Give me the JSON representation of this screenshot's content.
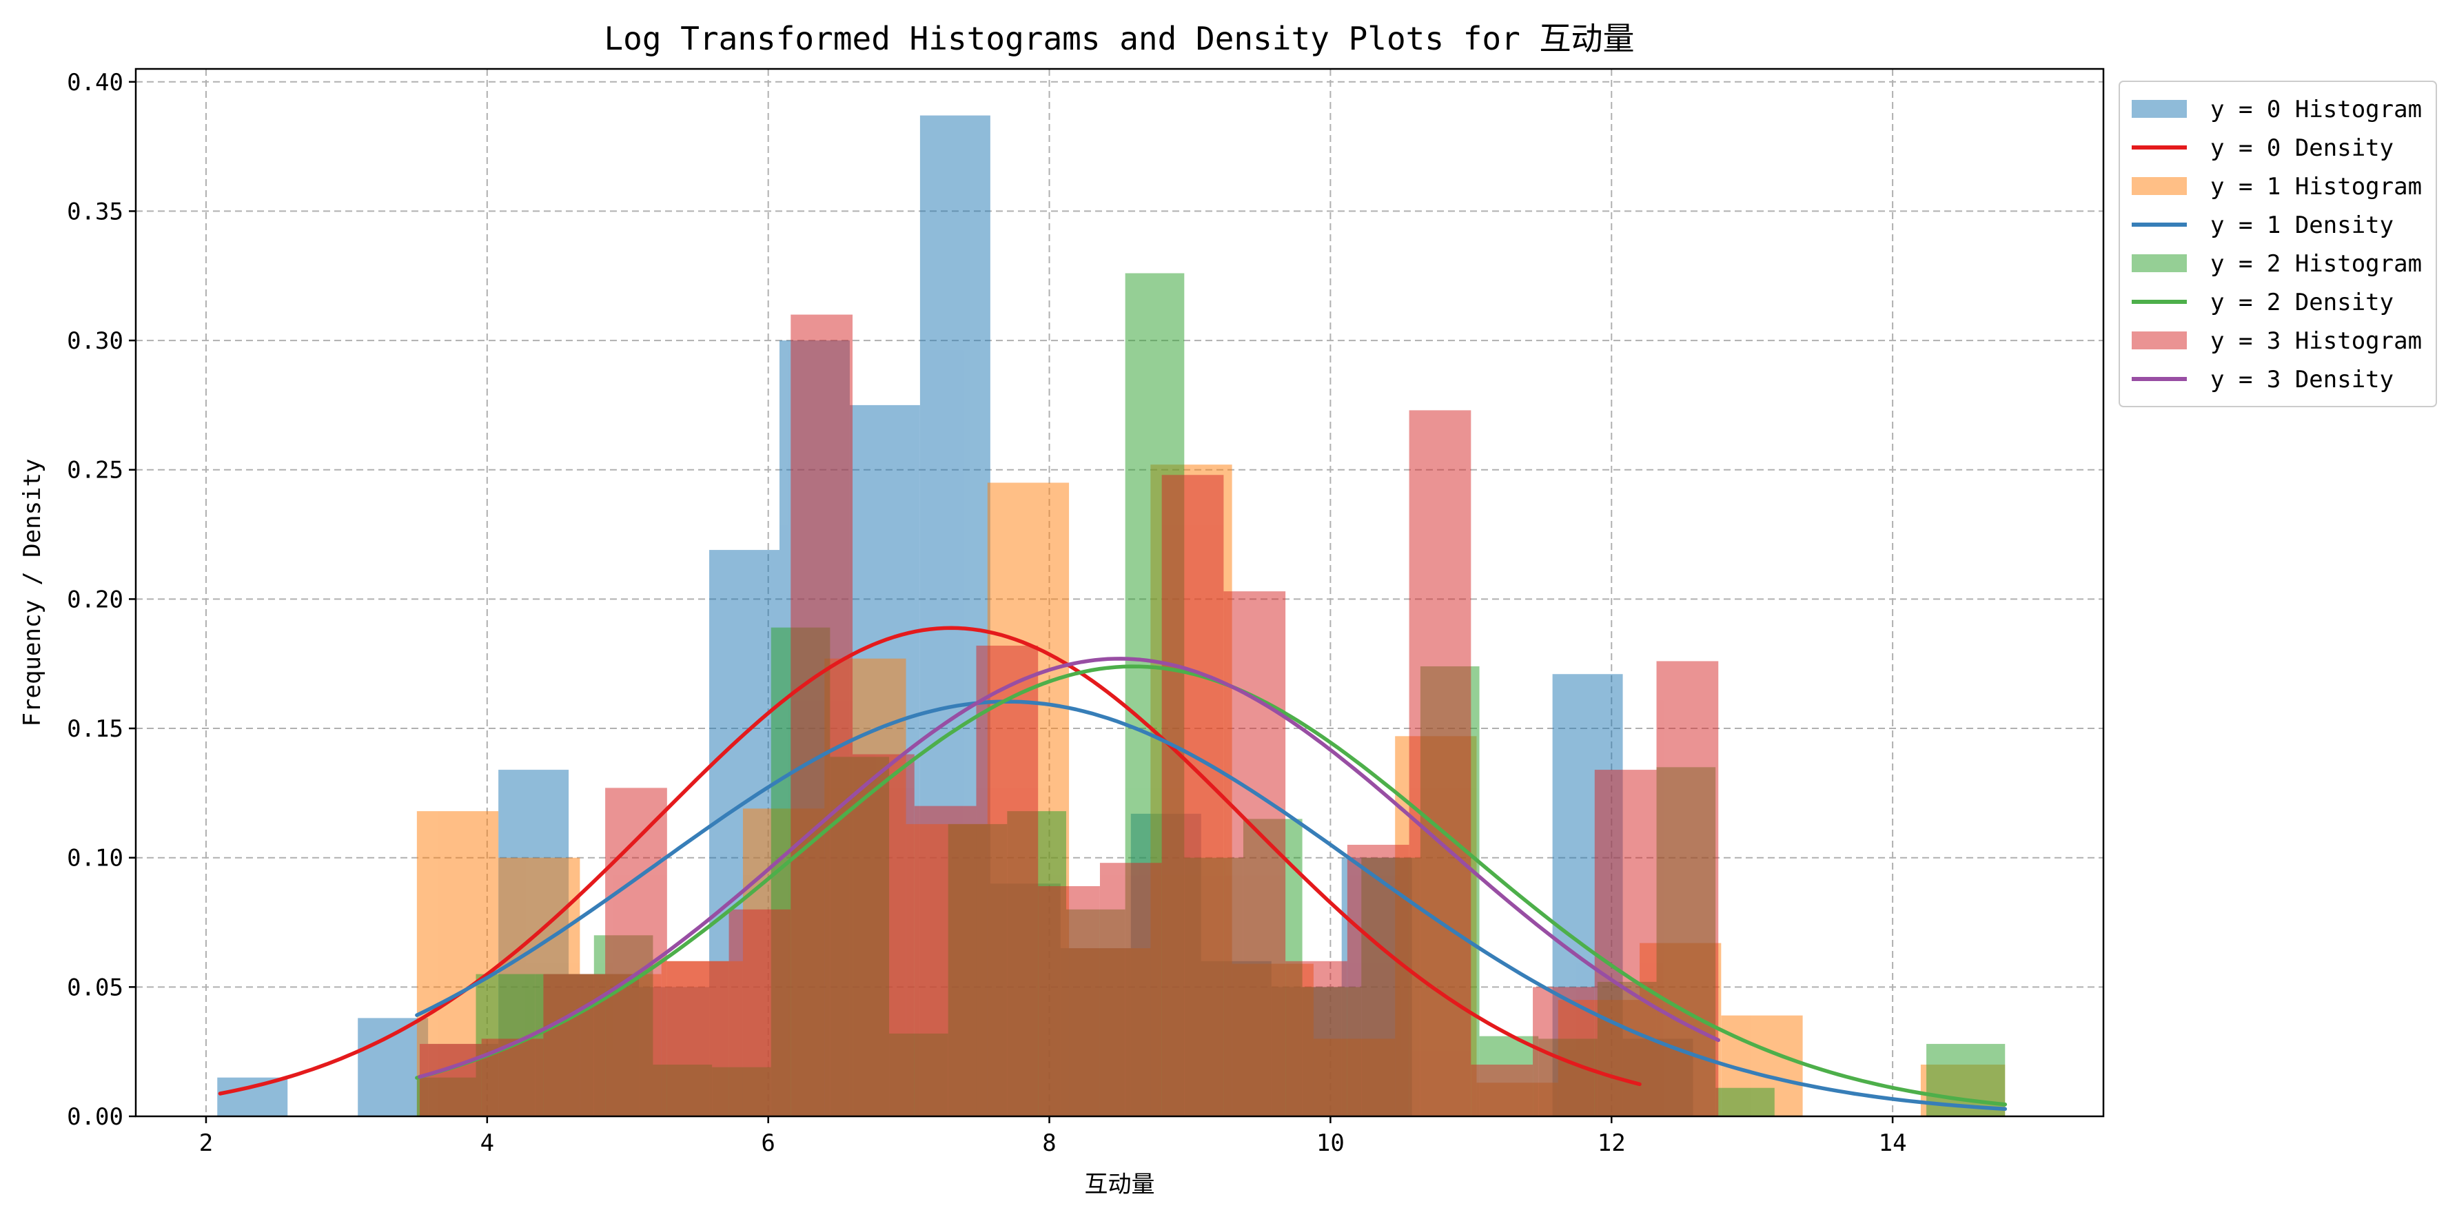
{
  "chart_data": {
    "type": "histogram+density",
    "title": "Log Transformed Histograms and Density Plots for 互动量",
    "xlabel": "互动量",
    "ylabel": "Frequency / Density",
    "xlim": [
      1.5,
      15.5
    ],
    "ylim": [
      0,
      0.405
    ],
    "x_ticks": [
      2,
      4,
      6,
      8,
      10,
      12,
      14
    ],
    "x_tick_labels": [
      "2",
      "4",
      "6",
      "8",
      "10",
      "12",
      "14"
    ],
    "y_ticks": [
      0,
      0.05,
      0.1,
      0.15,
      0.2,
      0.25,
      0.3,
      0.35,
      0.4
    ],
    "y_tick_labels": [
      "0.00",
      "0.05",
      "0.10",
      "0.15",
      "0.20",
      "0.25",
      "0.30",
      "0.35",
      "0.40"
    ],
    "grid": true,
    "legend_position": "outside-right-top",
    "legend": [
      "y = 0 Histogram",
      "y = 0 Density",
      "y = 1 Histogram",
      "y = 1 Density",
      "y = 2 Histogram",
      "y = 2 Density",
      "y = 3 Histogram",
      "y = 3 Density"
    ],
    "histograms": [
      {
        "name": "y = 0 Histogram",
        "color": "#1f77b4",
        "alpha": 0.5,
        "bins": [
          {
            "x0": 2.08,
            "x1": 2.58,
            "h": 0.015
          },
          {
            "x0": 3.08,
            "x1": 3.58,
            "h": 0.038
          },
          {
            "x0": 3.58,
            "x1": 4.08,
            "h": 0.028
          },
          {
            "x0": 4.08,
            "x1": 4.58,
            "h": 0.134
          },
          {
            "x0": 4.58,
            "x1": 5.08,
            "h": 0.055
          },
          {
            "x0": 5.08,
            "x1": 5.58,
            "h": 0.05
          },
          {
            "x0": 5.58,
            "x1": 6.08,
            "h": 0.219
          },
          {
            "x0": 6.08,
            "x1": 6.58,
            "h": 0.3
          },
          {
            "x0": 6.58,
            "x1": 7.08,
            "h": 0.275
          },
          {
            "x0": 7.08,
            "x1": 7.58,
            "h": 0.387
          },
          {
            "x0": 7.58,
            "x1": 8.08,
            "h": 0.09
          },
          {
            "x0": 8.08,
            "x1": 8.58,
            "h": 0.065
          },
          {
            "x0": 8.58,
            "x1": 9.08,
            "h": 0.117
          },
          {
            "x0": 9.08,
            "x1": 9.58,
            "h": 0.06
          },
          {
            "x0": 9.58,
            "x1": 10.08,
            "h": 0.05
          },
          {
            "x0": 10.08,
            "x1": 10.58,
            "h": 0.1
          },
          {
            "x0": 11.58,
            "x1": 12.08,
            "h": 0.171
          },
          {
            "x0": 12.08,
            "x1": 12.58,
            "h": 0.03
          }
        ]
      },
      {
        "name": "y = 1 Histogram",
        "color": "#ff7f0e",
        "alpha": 0.5,
        "bins": [
          {
            "x0": 3.5,
            "x1": 4.08,
            "h": 0.118
          },
          {
            "x0": 4.08,
            "x1": 4.66,
            "h": 0.1
          },
          {
            "x0": 4.66,
            "x1": 5.24,
            "h": 0.055
          },
          {
            "x0": 5.24,
            "x1": 5.82,
            "h": 0.06
          },
          {
            "x0": 5.82,
            "x1": 6.4,
            "h": 0.119
          },
          {
            "x0": 6.4,
            "x1": 6.98,
            "h": 0.177
          },
          {
            "x0": 6.98,
            "x1": 7.56,
            "h": 0.113
          },
          {
            "x0": 7.56,
            "x1": 8.14,
            "h": 0.245
          },
          {
            "x0": 8.14,
            "x1": 8.72,
            "h": 0.065
          },
          {
            "x0": 8.72,
            "x1": 9.3,
            "h": 0.252
          },
          {
            "x0": 9.3,
            "x1": 9.88,
            "h": 0.059
          },
          {
            "x0": 9.88,
            "x1": 10.46,
            "h": 0.03
          },
          {
            "x0": 10.46,
            "x1": 11.04,
            "h": 0.147
          },
          {
            "x0": 11.04,
            "x1": 11.62,
            "h": 0.013
          },
          {
            "x0": 11.62,
            "x1": 12.2,
            "h": 0.045
          },
          {
            "x0": 12.2,
            "x1": 12.78,
            "h": 0.067
          },
          {
            "x0": 12.78,
            "x1": 13.36,
            "h": 0.039
          },
          {
            "x0": 14.2,
            "x1": 14.8,
            "h": 0.02
          }
        ]
      },
      {
        "name": "y = 2 Histogram",
        "color": "#2ca02c",
        "alpha": 0.5,
        "bins": [
          {
            "x0": 3.5,
            "x1": 3.92,
            "h": 0.015
          },
          {
            "x0": 3.92,
            "x1": 4.34,
            "h": 0.055
          },
          {
            "x0": 4.34,
            "x1": 4.76,
            "h": 0.055
          },
          {
            "x0": 4.76,
            "x1": 5.18,
            "h": 0.07
          },
          {
            "x0": 5.18,
            "x1": 5.6,
            "h": 0.02
          },
          {
            "x0": 5.6,
            "x1": 6.02,
            "h": 0.019
          },
          {
            "x0": 6.02,
            "x1": 6.44,
            "h": 0.189
          },
          {
            "x0": 6.44,
            "x1": 6.86,
            "h": 0.139
          },
          {
            "x0": 6.86,
            "x1": 7.28,
            "h": 0.032
          },
          {
            "x0": 7.28,
            "x1": 7.7,
            "h": 0.113
          },
          {
            "x0": 7.7,
            "x1": 8.12,
            "h": 0.118
          },
          {
            "x0": 8.12,
            "x1": 8.54,
            "h": 0.08
          },
          {
            "x0": 8.54,
            "x1": 8.96,
            "h": 0.326
          },
          {
            "x0": 8.96,
            "x1": 9.38,
            "h": 0.1
          },
          {
            "x0": 9.38,
            "x1": 9.8,
            "h": 0.115
          },
          {
            "x0": 9.8,
            "x1": 10.22,
            "h": 0.05
          },
          {
            "x0": 10.22,
            "x1": 10.64,
            "h": 0.1
          },
          {
            "x0": 10.64,
            "x1": 11.06,
            "h": 0.174
          },
          {
            "x0": 11.06,
            "x1": 11.48,
            "h": 0.031
          },
          {
            "x0": 11.48,
            "x1": 11.9,
            "h": 0.03
          },
          {
            "x0": 11.9,
            "x1": 12.32,
            "h": 0.052
          },
          {
            "x0": 12.32,
            "x1": 12.74,
            "h": 0.135
          },
          {
            "x0": 12.74,
            "x1": 13.16,
            "h": 0.011
          },
          {
            "x0": 14.24,
            "x1": 14.8,
            "h": 0.028
          }
        ]
      },
      {
        "name": "y = 3 Histogram",
        "color": "#d62728",
        "alpha": 0.5,
        "bins": [
          {
            "x0": 3.52,
            "x1": 3.96,
            "h": 0.028
          },
          {
            "x0": 3.96,
            "x1": 4.4,
            "h": 0.03
          },
          {
            "x0": 4.4,
            "x1": 4.84,
            "h": 0.055
          },
          {
            "x0": 4.84,
            "x1": 5.28,
            "h": 0.127
          },
          {
            "x0": 5.28,
            "x1": 5.72,
            "h": 0.06
          },
          {
            "x0": 5.72,
            "x1": 6.16,
            "h": 0.08
          },
          {
            "x0": 6.16,
            "x1": 6.6,
            "h": 0.31
          },
          {
            "x0": 6.6,
            "x1": 7.04,
            "h": 0.14
          },
          {
            "x0": 7.04,
            "x1": 7.48,
            "h": 0.12
          },
          {
            "x0": 7.48,
            "x1": 7.92,
            "h": 0.182
          },
          {
            "x0": 7.92,
            "x1": 8.36,
            "h": 0.089
          },
          {
            "x0": 8.36,
            "x1": 8.8,
            "h": 0.098
          },
          {
            "x0": 8.8,
            "x1": 9.24,
            "h": 0.248
          },
          {
            "x0": 9.24,
            "x1": 9.68,
            "h": 0.203
          },
          {
            "x0": 9.68,
            "x1": 10.12,
            "h": 0.06
          },
          {
            "x0": 10.12,
            "x1": 10.56,
            "h": 0.105
          },
          {
            "x0": 10.56,
            "x1": 11.0,
            "h": 0.273
          },
          {
            "x0": 11.0,
            "x1": 11.44,
            "h": 0.02
          },
          {
            "x0": 11.44,
            "x1": 11.88,
            "h": 0.05
          },
          {
            "x0": 11.88,
            "x1": 12.32,
            "h": 0.134
          },
          {
            "x0": 12.32,
            "x1": 12.76,
            "h": 0.176
          }
        ]
      }
    ],
    "density_curves": [
      {
        "name": "y = 0 Density",
        "color": "#e41a1c",
        "mean": 7.3,
        "sd": 2.1,
        "scale": 0.994,
        "x_range": [
          2.1,
          12.2
        ]
      },
      {
        "name": "y = 1 Density",
        "color": "#377eb8",
        "mean": 7.7,
        "sd": 2.5,
        "scale": 1.005,
        "x_range": [
          3.5,
          14.8
        ]
      },
      {
        "name": "y = 2 Density",
        "color": "#4daf4a",
        "mean": 8.6,
        "sd": 2.3,
        "scale": 1.003,
        "x_range": [
          3.5,
          14.8
        ]
      },
      {
        "name": "y = 3 Density",
        "color": "#984ea3",
        "mean": 8.5,
        "sd": 2.25,
        "scale": 0.998,
        "x_range": [
          3.52,
          12.76
        ]
      }
    ]
  }
}
